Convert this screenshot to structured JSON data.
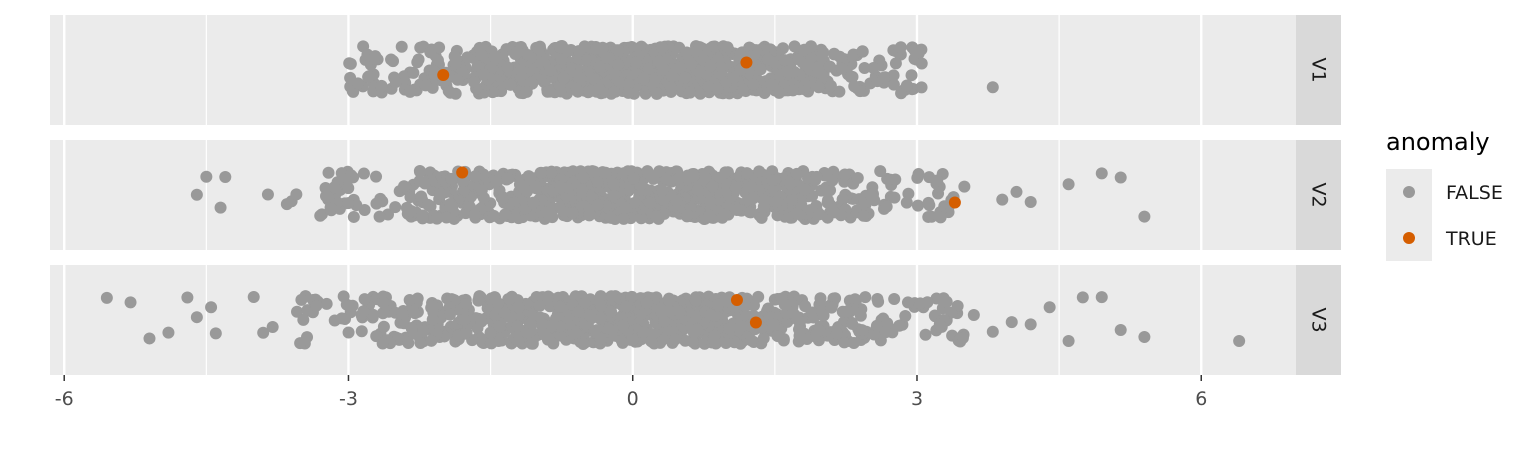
{
  "chart_data": {
    "type": "scatter",
    "style": "faceted horizontal jitter (strip) plot",
    "x_ticks": [
      -6,
      -3,
      0,
      3,
      6
    ],
    "x_tick_labels": [
      "-6",
      "-3",
      "0",
      "3",
      "6"
    ],
    "xlim": [
      -6.15,
      7
    ],
    "grid": true,
    "legend_position": "right",
    "legend": {
      "title": "anomaly",
      "entries": [
        {
          "label": "FALSE",
          "color": "#999999"
        },
        {
          "label": "TRUE",
          "color": "#d55e00"
        }
      ]
    },
    "panels": [
      {
        "label": "V1",
        "normal_range": [
          -3.0,
          3.05
        ],
        "normal_extra_x": [
          -2.95,
          -2.9,
          -2.5,
          -2.35,
          2.4,
          2.65,
          3.05,
          3.8
        ],
        "anomalies": [
          {
            "x": -2.0,
            "jitter": -0.1
          },
          {
            "x": 1.2,
            "jitter": 0.15
          }
        ]
      },
      {
        "label": "V2",
        "normal_range": [
          -3.3,
          3.4
        ],
        "normal_extra_x": [
          -4.6,
          -4.5,
          -4.3,
          -4.35,
          -3.85,
          -3.65,
          -3.6,
          -3.55,
          3.5,
          3.9,
          4.05,
          4.2,
          4.6,
          4.95,
          5.15,
          5.4
        ],
        "anomalies": [
          {
            "x": -1.8,
            "jitter": 0.45
          },
          {
            "x": 3.4,
            "jitter": -0.15
          }
        ]
      },
      {
        "label": "V3",
        "normal_range": [
          -3.6,
          3.5
        ],
        "normal_extra_x": [
          -5.55,
          -5.3,
          -5.1,
          -4.9,
          -4.7,
          -4.6,
          -4.45,
          -4.4,
          -4.0,
          -3.9,
          -3.8,
          3.6,
          3.8,
          4.0,
          4.2,
          4.4,
          4.6,
          4.75,
          4.95,
          5.15,
          5.4,
          6.4
        ],
        "anomalies": [
          {
            "x": 1.1,
            "jitter": 0.4
          },
          {
            "x": 1.3,
            "jitter": -0.05
          }
        ]
      }
    ]
  }
}
